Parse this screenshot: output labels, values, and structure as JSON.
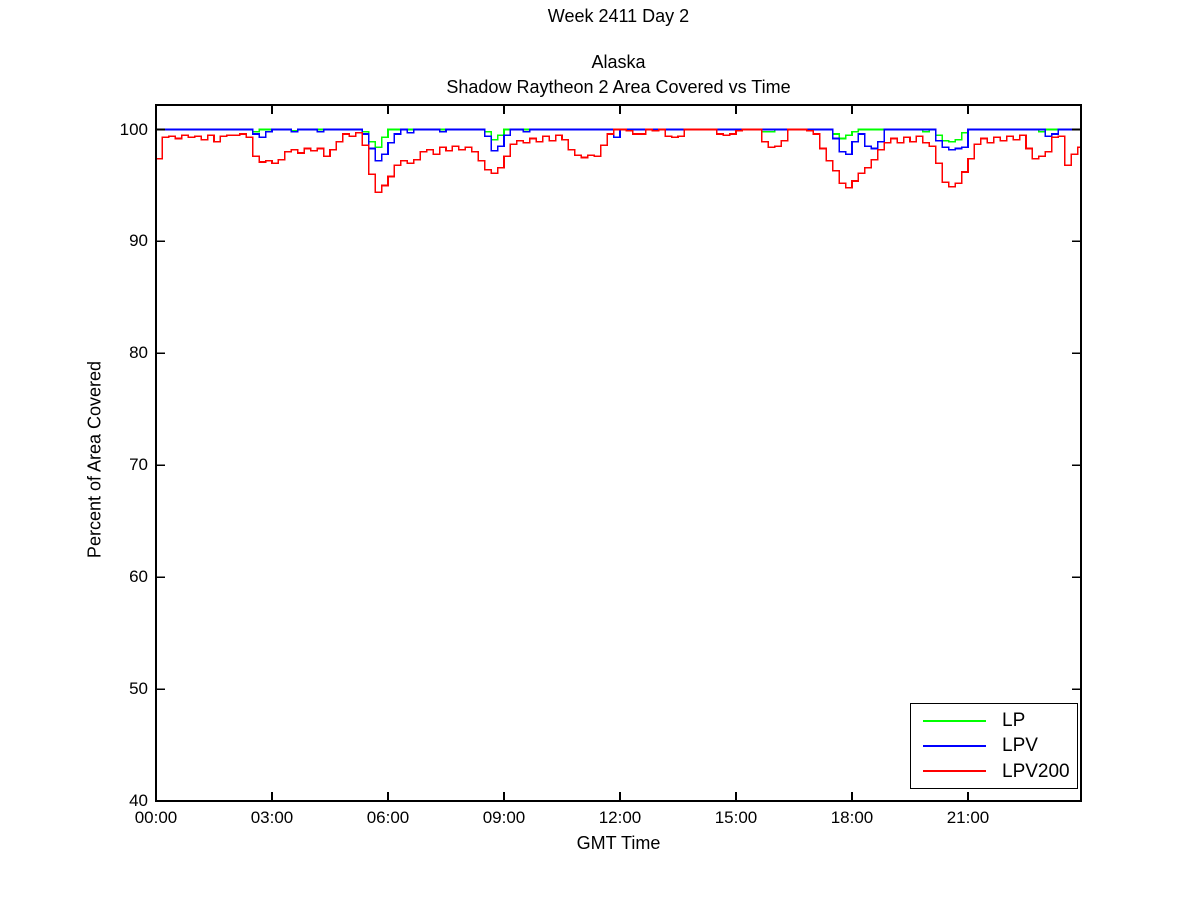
{
  "figure": {
    "background": "#ffffff",
    "suptitle": "Week 2411 Day 2"
  },
  "chart_data": {
    "type": "line",
    "line_style": "step-after",
    "title": "Alaska",
    "subtitle": "Shadow Raytheon 2 Area Covered vs Time",
    "xlabel": "GMT Time",
    "ylabel": "Percent of Area Covered",
    "xlim_hours": [
      0,
      24
    ],
    "ylim": [
      40,
      102.19
    ],
    "grid": false,
    "y_ticks": [
      40,
      50,
      60,
      70,
      80,
      90,
      100
    ],
    "x_tick_hours": [
      0,
      3,
      6,
      9,
      12,
      15,
      18,
      21
    ],
    "x_tick_labels": [
      "00:00",
      "03:00",
      "06:00",
      "09:00",
      "12:00",
      "15:00",
      "18:00",
      "21:00"
    ],
    "sample_interval_minutes": 10,
    "axis_color": "#000000",
    "legend": {
      "position": "lower right",
      "entries": [
        "LP",
        "LPV",
        "LPV200"
      ]
    },
    "series": [
      {
        "name": "LP",
        "color": "#00ff00",
        "values": [
          100,
          100,
          100,
          100,
          100,
          100,
          100,
          100,
          100,
          100,
          100,
          100,
          100,
          100,
          100,
          99.8,
          100,
          100,
          100,
          100,
          100,
          99.9,
          100,
          100,
          100,
          100,
          100,
          100,
          100,
          100,
          100,
          100,
          99.8,
          98.9,
          98.4,
          99.3,
          100,
          100,
          100,
          100,
          100,
          100,
          100,
          100,
          100,
          100,
          100,
          100,
          100,
          100,
          100,
          99.8,
          99.1,
          99.5,
          100,
          100,
          100,
          100,
          100,
          100,
          100,
          100,
          100,
          100,
          100,
          100,
          100,
          100,
          100,
          100,
          100,
          100,
          100,
          100,
          100,
          100,
          100,
          100,
          100,
          100,
          100,
          100,
          100,
          100,
          100,
          100,
          100,
          100,
          100,
          100,
          100,
          100,
          100,
          100,
          99.8,
          99.8,
          100,
          100,
          100,
          100,
          100,
          100,
          100,
          100,
          100,
          99.6,
          99.2,
          99.5,
          99.8,
          100,
          100,
          100,
          100,
          100,
          100,
          100,
          100,
          100,
          100,
          99.8,
          100,
          99.5,
          99.0,
          98.9,
          99.1,
          99.7,
          100,
          100,
          100,
          100,
          100,
          100,
          100,
          100,
          100,
          100,
          100,
          99.8,
          100,
          100,
          100,
          100,
          100,
          100
        ]
      },
      {
        "name": "LPV",
        "color": "#0000ff",
        "values": [
          100,
          100,
          100,
          100,
          100,
          100,
          100,
          100,
          100,
          100,
          100,
          100,
          100,
          100,
          100,
          99.6,
          99.3,
          99.8,
          100,
          100,
          100,
          99.8,
          100,
          100,
          100,
          99.8,
          100,
          100,
          100,
          100,
          100,
          100,
          99.6,
          98.3,
          97.2,
          97.8,
          98.8,
          99.6,
          100,
          99.7,
          100,
          100,
          100,
          100,
          99.8,
          100,
          100,
          100,
          100,
          100,
          100,
          99.4,
          98.1,
          98.5,
          99.5,
          100,
          100,
          99.8,
          100,
          100,
          100,
          100,
          100,
          100,
          100,
          100,
          100,
          100,
          100,
          100,
          100,
          99.3,
          100,
          100,
          100,
          100,
          100,
          100,
          100,
          100,
          100,
          100,
          100,
          100,
          100,
          100,
          100,
          100,
          100,
          100,
          100,
          100,
          100,
          100,
          100,
          100,
          100,
          100,
          100,
          100,
          100,
          100,
          100,
          100,
          100,
          99.2,
          98.0,
          97.8,
          98.9,
          99.6,
          98.5,
          98.3,
          98.9,
          100,
          100,
          100,
          100,
          100,
          100,
          100,
          100,
          99.0,
          98.4,
          98.2,
          98.3,
          98.4,
          100,
          100,
          100,
          100,
          100,
          100,
          100,
          100,
          100,
          100,
          100,
          100,
          99.4,
          99.6,
          100,
          100,
          100,
          100
        ]
      },
      {
        "name": "LPV200",
        "color": "#ff0000",
        "values": [
          97.4,
          99.3,
          99.4,
          99.2,
          99.5,
          99.3,
          99.4,
          99.1,
          99.5,
          98.9,
          99.4,
          99.5,
          99.5,
          99.6,
          99.3,
          97.6,
          97.1,
          97.2,
          97.0,
          97.3,
          98.0,
          98.2,
          97.9,
          98.3,
          98.1,
          98.3,
          97.6,
          98.2,
          98.9,
          99.6,
          99.4,
          99.7,
          98.6,
          96.0,
          94.4,
          95.0,
          95.8,
          96.8,
          97.2,
          97.0,
          97.3,
          98.0,
          98.2,
          97.8,
          98.4,
          98.1,
          98.5,
          98.2,
          98.4,
          98.0,
          97.2,
          96.4,
          96.1,
          96.6,
          97.6,
          98.7,
          99.0,
          98.8,
          99.2,
          98.9,
          99.4,
          99.0,
          99.5,
          99.1,
          98.2,
          97.7,
          97.5,
          97.7,
          97.6,
          98.6,
          99.6,
          100,
          100,
          99.9,
          99.6,
          99.6,
          100,
          99.9,
          100,
          99.4,
          99.3,
          99.4,
          100,
          100,
          100,
          100,
          100,
          99.6,
          99.5,
          99.6,
          99.9,
          100,
          100,
          100,
          98.9,
          98.4,
          98.5,
          99.0,
          100,
          100,
          100,
          99.9,
          99.6,
          98.3,
          97.2,
          96.3,
          95.2,
          94.8,
          95.4,
          96.1,
          96.6,
          97.3,
          98.2,
          98.8,
          99.2,
          98.8,
          99.3,
          98.9,
          99.4,
          98.8,
          98.5,
          97.0,
          95.3,
          94.9,
          95.2,
          96.2,
          97.4,
          98.7,
          99.2,
          98.8,
          99.3,
          99.0,
          99.4,
          99.1,
          99.5,
          98.3,
          97.4,
          97.6,
          98.0,
          99.3,
          99.4,
          96.8,
          97.8,
          98.4
        ]
      }
    ]
  }
}
